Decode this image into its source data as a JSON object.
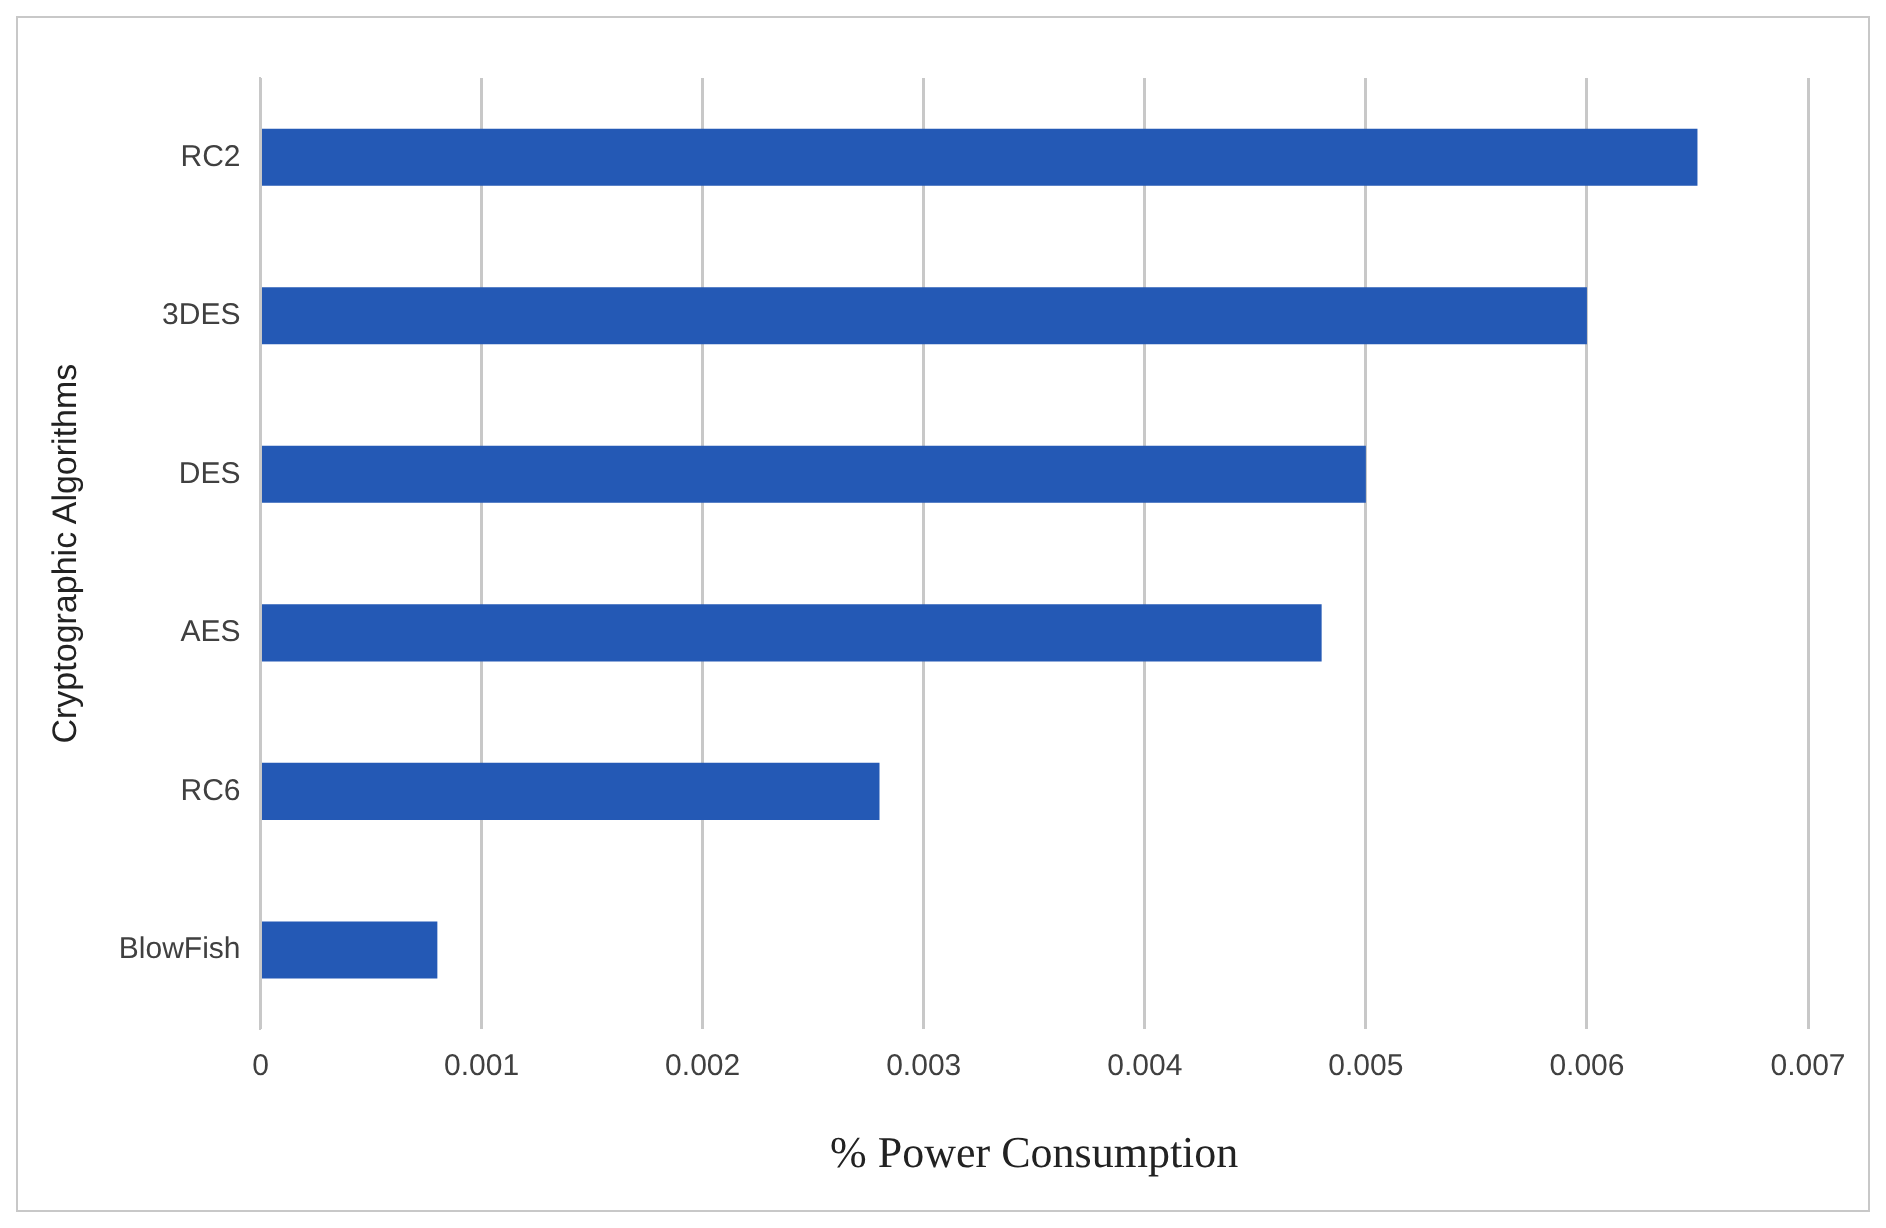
{
  "chart_data": {
    "type": "bar",
    "orientation": "horizontal",
    "xlabel": "% Power Consumption",
    "ylabel": "Cryptographic Algorithms",
    "categories": [
      "RC2",
      "3DES",
      "DES",
      "AES",
      "RC6",
      "BlowFish"
    ],
    "values": [
      0.0065,
      0.006,
      0.005,
      0.0048,
      0.0028,
      0.0008
    ],
    "color": "#2459b5",
    "xlim": [
      0,
      0.007
    ],
    "xticks": [
      0,
      0.001,
      0.002,
      0.003,
      0.004,
      0.005,
      0.006,
      0.007
    ],
    "grid": "x"
  }
}
